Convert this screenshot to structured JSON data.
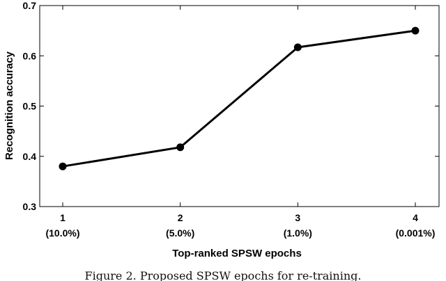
{
  "chart_data": {
    "type": "line",
    "x": [
      "1",
      "2",
      "3",
      "4"
    ],
    "x_sublabels": [
      "(10.0%)",
      "(5.0%)",
      "(1.0%)",
      "(0.001%)"
    ],
    "series": [
      {
        "values": [
          0.38,
          0.418,
          0.617,
          0.65
        ],
        "color": "#000000",
        "marker": "circle"
      }
    ],
    "xlabel": "Top-ranked SPSW epochs",
    "ylabel": "Recognition accuracy",
    "ylim": [
      0.3,
      0.7
    ],
    "yticks": [
      "0.3",
      "0.4",
      "0.5",
      "0.6",
      "0.7"
    ],
    "grid": false
  },
  "caption": "Figure 2. Proposed SPSW epochs for re-training."
}
